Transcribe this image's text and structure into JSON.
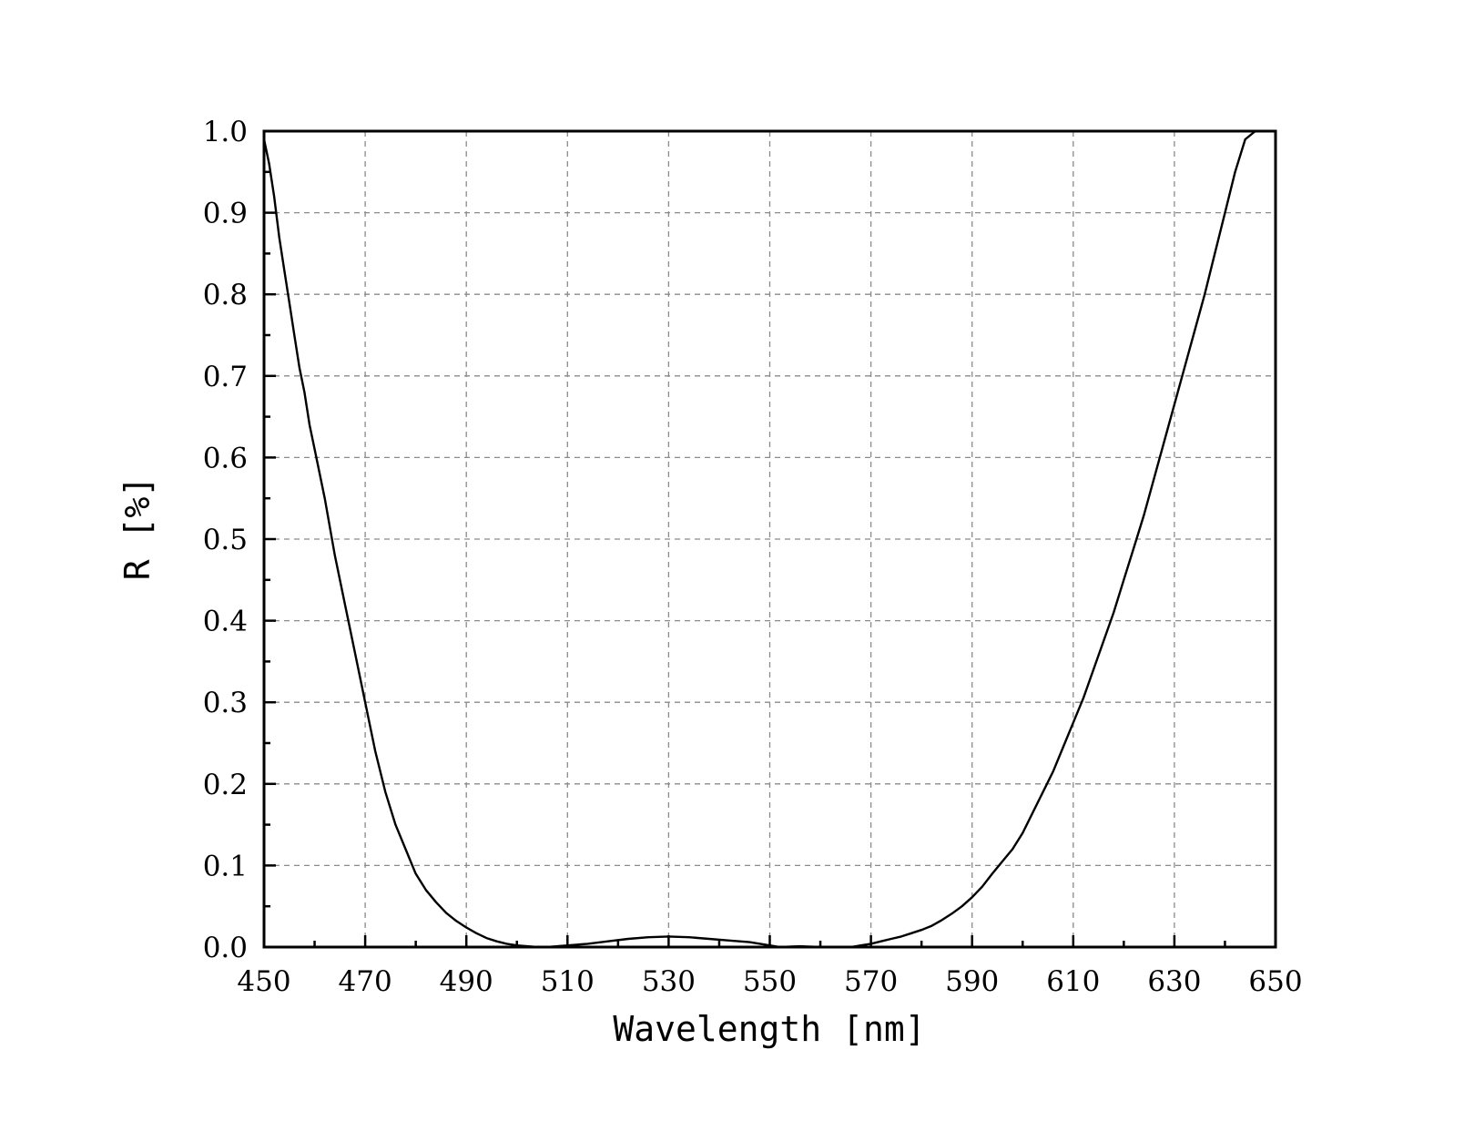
{
  "chart_data": {
    "type": "line",
    "title": "",
    "xlabel": "Wavelength [nm]",
    "ylabel": "R [%]",
    "xlim": [
      450,
      650
    ],
    "ylim": [
      0.0,
      1.0
    ],
    "x_ticks": [
      "450",
      "470",
      "490",
      "510",
      "530",
      "550",
      "570",
      "590",
      "610",
      "630",
      "650"
    ],
    "y_ticks": [
      "0.0",
      "0.1",
      "0.2",
      "0.3",
      "0.4",
      "0.5",
      "0.6",
      "0.7",
      "0.8",
      "0.9",
      "1.0"
    ],
    "grid": true,
    "series": [
      {
        "x": [
          450,
          451,
          452,
          453,
          454,
          455,
          456,
          457,
          458,
          459,
          460,
          462,
          464,
          466,
          468,
          470,
          472,
          474,
          476,
          478,
          480,
          482,
          484,
          486,
          488,
          490,
          492,
          494,
          496,
          498,
          500,
          502,
          504,
          506,
          508,
          510,
          514,
          518,
          522,
          526,
          530,
          534,
          538,
          542,
          546,
          550,
          552,
          556,
          560,
          564,
          566,
          568,
          570,
          572,
          574,
          576,
          578,
          580,
          582,
          584,
          586,
          588,
          590,
          592,
          594,
          596,
          598,
          600,
          602,
          604,
          606,
          608,
          610,
          612,
          614,
          616,
          618,
          620,
          622,
          624,
          626,
          628,
          630,
          632,
          634,
          636,
          638,
          640,
          642,
          644,
          646,
          646.5
        ],
        "y": [
          0.99,
          0.96,
          0.92,
          0.87,
          0.83,
          0.79,
          0.75,
          0.71,
          0.68,
          0.64,
          0.61,
          0.55,
          0.48,
          0.42,
          0.36,
          0.3,
          0.24,
          0.19,
          0.15,
          0.12,
          0.09,
          0.07,
          0.055,
          0.042,
          0.032,
          0.024,
          0.017,
          0.011,
          0.007,
          0.004,
          0.002,
          0.001,
          0.0,
          0.0,
          0.001,
          0.002,
          0.004,
          0.007,
          0.01,
          0.012,
          0.013,
          0.012,
          0.01,
          0.008,
          0.006,
          0.002,
          0.0,
          0.001,
          0.0,
          0.0,
          0.0,
          0.002,
          0.004,
          0.007,
          0.01,
          0.013,
          0.017,
          0.021,
          0.026,
          0.033,
          0.041,
          0.05,
          0.061,
          0.074,
          0.09,
          0.105,
          0.12,
          0.14,
          0.165,
          0.19,
          0.215,
          0.245,
          0.275,
          0.305,
          0.34,
          0.375,
          0.41,
          0.45,
          0.49,
          0.53,
          0.575,
          0.62,
          0.665,
          0.71,
          0.755,
          0.8,
          0.85,
          0.9,
          0.95,
          0.99,
          1.0,
          1.0
        ]
      }
    ]
  }
}
